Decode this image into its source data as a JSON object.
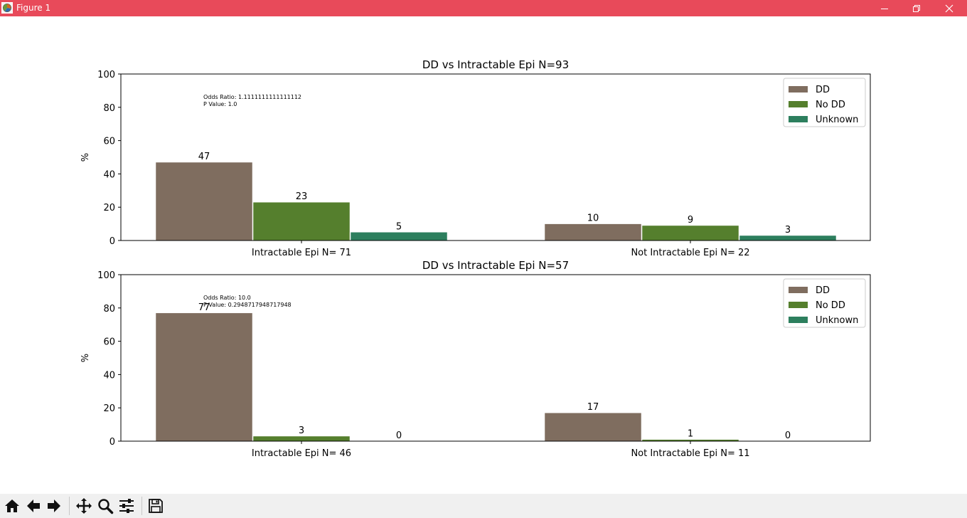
{
  "window": {
    "title": "Figure 1"
  },
  "colors": {
    "titlebar": "#e84a5a",
    "DD": "#7f6d5f",
    "No DD": "#557f2d",
    "Unknown": "#2d7f5e"
  },
  "icons": {
    "app": "matplotlib-figure-icon",
    "minimize": "minimize-icon",
    "maximize": "restore-icon",
    "close": "close-icon",
    "toolbar": [
      "home-icon",
      "back-arrow-icon",
      "forward-arrow-icon",
      "pan-icon",
      "zoom-icon",
      "configure-subplots-icon",
      "save-icon"
    ]
  },
  "chart_data": [
    {
      "type": "bar",
      "title": "DD vs Intractable Epi N=93",
      "xlabel": "",
      "ylabel": "%",
      "ylim": [
        0,
        100
      ],
      "yticks": [
        0,
        20,
        40,
        60,
        80,
        100
      ],
      "grid": false,
      "legend": "top-right",
      "categories": [
        "Intractable Epi N= 71",
        "Not Intractable Epi N= 22"
      ],
      "series": [
        {
          "name": "DD",
          "values": [
            47,
            10
          ]
        },
        {
          "name": "No DD",
          "values": [
            23,
            9
          ]
        },
        {
          "name": "Unknown",
          "values": [
            5,
            3
          ]
        }
      ],
      "bar_labels": [
        [
          "47",
          "23",
          "5"
        ],
        [
          "10",
          "9",
          "3"
        ]
      ],
      "annotation": [
        "Odds Ratio: 1.1111111111111112",
        "P Value: 1.0"
      ]
    },
    {
      "type": "bar",
      "title": "DD vs Intractable Epi N=57",
      "xlabel": "",
      "ylabel": "%",
      "ylim": [
        0,
        100
      ],
      "yticks": [
        0,
        20,
        40,
        60,
        80,
        100
      ],
      "grid": false,
      "legend": "top-right",
      "categories": [
        "Intractable Epi N= 46",
        "Not Intractable Epi N= 11"
      ],
      "series": [
        {
          "name": "DD",
          "values": [
            77,
            17
          ]
        },
        {
          "name": "No DD",
          "values": [
            3,
            1
          ]
        },
        {
          "name": "Unknown",
          "values": [
            0,
            0
          ]
        }
      ],
      "bar_labels": [
        [
          "77",
          "3",
          "0"
        ],
        [
          "17",
          "1",
          "0"
        ]
      ],
      "annotation": [
        "Odds Ratio: 10.0",
        "P Value: 0.2948717948717948"
      ]
    }
  ]
}
